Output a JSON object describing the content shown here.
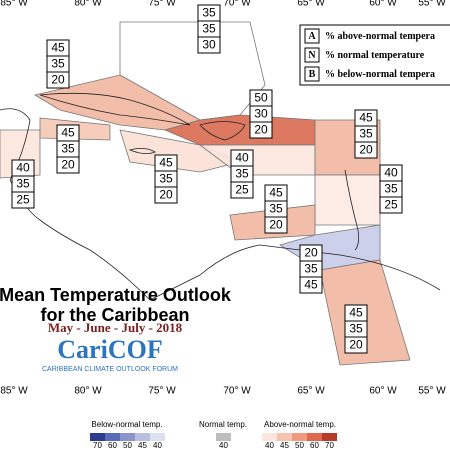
{
  "map": {
    "longitude_labels_top": [
      "85° W",
      "80° W",
      "75° W",
      "70° W",
      "65° W",
      "60° W",
      "55° W"
    ],
    "longitude_labels_bottom": [
      "85° W",
      "80° W",
      "75° W",
      "70° W",
      "65° W",
      "60° W",
      "55° W"
    ],
    "legend": [
      {
        "key": "A",
        "text": "% above-normal tempera"
      },
      {
        "key": "N",
        "text": "% normal temperature"
      },
      {
        "key": "B",
        "text": "% below-normal tempera"
      }
    ],
    "title": [
      "Mean Temperature Outlook",
      "for the Caribbean"
    ],
    "period": "May - June - July - 2018",
    "logo": "CariCOF",
    "logo_subtitle": "CARIBBEAN CLIMATE OUTLOOK FORUM",
    "regions": [
      {
        "above": 35,
        "normal": 35,
        "below": 30,
        "color": "#ffffff"
      },
      {
        "above": 45,
        "normal": 35,
        "below": 20,
        "color": "#f2b7a0"
      },
      {
        "above": 50,
        "normal": 30,
        "below": 20,
        "color": "#d96a50"
      },
      {
        "above": 40,
        "normal": 35,
        "below": 25,
        "color": "#fde6dc"
      },
      {
        "above": 45,
        "normal": 35,
        "below": 20,
        "color": "#f5c6b4"
      },
      {
        "above": 45,
        "normal": 35,
        "below": 20,
        "color": "#fbe0d6"
      },
      {
        "above": 40,
        "normal": 35,
        "below": 25,
        "color": "#fbe6de"
      },
      {
        "above": 45,
        "normal": 35,
        "below": 20,
        "color": "#f2b7a0"
      },
      {
        "above": 40,
        "normal": 35,
        "below": 25,
        "color": "#fde9e2"
      },
      {
        "above": 45,
        "normal": 35,
        "below": 20,
        "color": "#f2b7a0"
      },
      {
        "above": 20,
        "normal": 35,
        "below": 45,
        "color": "#c8cbe8"
      },
      {
        "above": 45,
        "normal": 35,
        "below": 20,
        "color": "#f2b7a0"
      }
    ],
    "colorbar": {
      "below_title": "Below-normal temp.",
      "below": [
        {
          "label": 70,
          "color": "#2b3b8f"
        },
        {
          "label": 60,
          "color": "#5a6ab8"
        },
        {
          "label": 50,
          "color": "#8b95cc"
        },
        {
          "label": 45,
          "color": "#b9bfe0"
        },
        {
          "label": 40,
          "color": "#dde0f0"
        }
      ],
      "normal_title": "Normal temp.",
      "normal": [
        {
          "label": 40,
          "color": "#bdbdbd"
        }
      ],
      "above_title": "Above-normal temp.",
      "above": [
        {
          "label": 40,
          "color": "#fbe6df"
        },
        {
          "label": 45,
          "color": "#f7c2b0"
        },
        {
          "label": 50,
          "color": "#f09a80"
        },
        {
          "label": 60,
          "color": "#e06a50"
        },
        {
          "label": 70,
          "color": "#b83a2a"
        }
      ]
    }
  }
}
